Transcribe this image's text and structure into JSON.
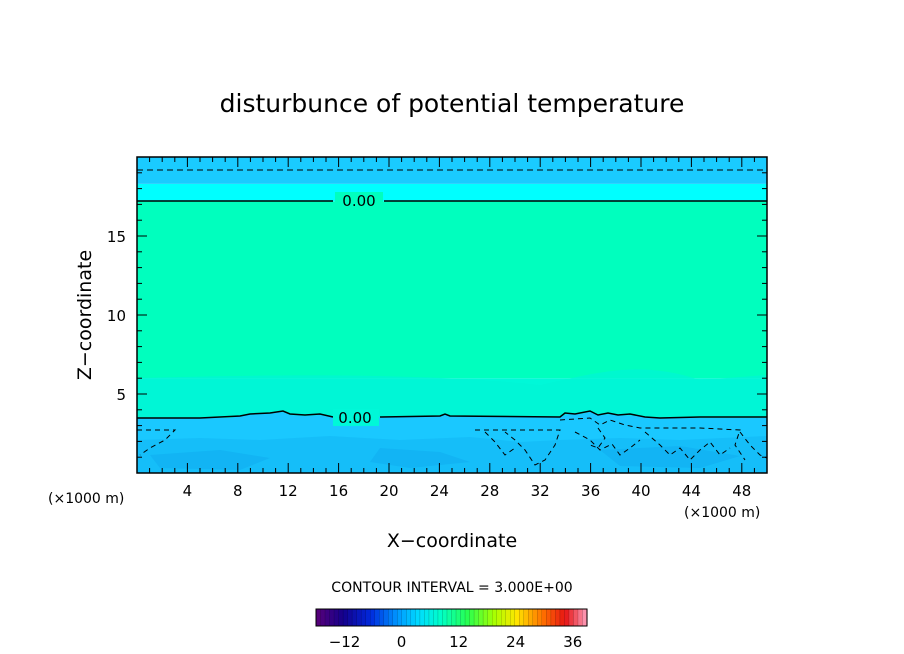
{
  "chart_data": {
    "type": "heatmap",
    "title": "disturbunce of potential temperature",
    "xlabel": "X−coordinate",
    "ylabel": "Z−coordinate",
    "x_unit_left": "(×1000 m)",
    "x_unit_right": "(×1000 m)",
    "xlim": [
      0,
      50
    ],
    "ylim": [
      0,
      20
    ],
    "x_ticks": [
      4,
      8,
      12,
      16,
      20,
      24,
      28,
      32,
      36,
      40,
      44,
      48
    ],
    "y_ticks": [
      5,
      10,
      15
    ],
    "contour_interval_text": "CONTOUR INTERVAL = 3.000E+00",
    "contour_interval": 3.0,
    "contour_labels": [
      {
        "text": "0.00",
        "z": 17.2
      },
      {
        "text": "0.00",
        "z": 3.5
      }
    ],
    "colorbar_ticks": [
      "−12",
      "0",
      "12",
      "24",
      "36"
    ],
    "colorbar_range": [
      -18,
      39
    ],
    "bands": [
      {
        "z_from": 0,
        "z_to": 3.5,
        "value": "-3 to 0",
        "color": "#1ac8ff"
      },
      {
        "z_from": 3.5,
        "z_to": 6,
        "value": "0 to 3",
        "color": "#00f8d8"
      },
      {
        "z_from": 6,
        "z_to": 17.2,
        "value": "0 to 3",
        "color": "#00ffbe"
      },
      {
        "z_from": 17.2,
        "z_to": 18.3,
        "value": "0 to -3",
        "color": "#00ffff"
      },
      {
        "z_from": 18.3,
        "z_to": 20,
        "value": "-3 to -6",
        "color": "#1acbff"
      }
    ],
    "grid": false,
    "legend": "colorbar bottom-center"
  }
}
